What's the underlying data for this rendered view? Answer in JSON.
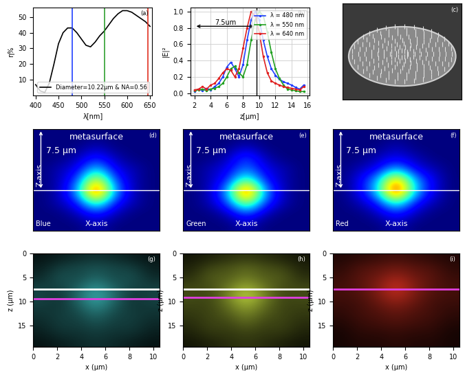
{
  "chart_data": [
    {
      "type": "line",
      "panel": "(a)",
      "xlabel": "λ[nm]",
      "ylabel": "η%",
      "x": [
        400,
        410,
        420,
        430,
        440,
        450,
        460,
        470,
        480,
        490,
        500,
        510,
        520,
        530,
        540,
        550,
        560,
        570,
        580,
        590,
        600,
        610,
        620,
        630,
        640,
        650
      ],
      "series": [
        {
          "name": "Diameter=10.22μm & NA=0.56",
          "color": "#000000",
          "values": [
            7,
            3,
            2,
            8,
            20,
            33,
            40,
            43,
            43,
            40,
            36,
            32,
            31,
            34,
            38,
            41,
            45,
            49,
            52,
            54,
            54,
            53,
            51,
            49,
            47,
            44
          ]
        }
      ],
      "vlines": [
        {
          "x": 480,
          "color": "#2040ff"
        },
        {
          "x": 550,
          "color": "#30a030"
        },
        {
          "x": 645,
          "color": "#e03020"
        }
      ],
      "xlim": [
        395,
        655
      ],
      "ylim": [
        0,
        56
      ],
      "xticks": [
        400,
        450,
        500,
        550,
        600,
        650
      ],
      "yticks": [
        10,
        20,
        30,
        40,
        50
      ],
      "legend": "lower right"
    },
    {
      "type": "line",
      "panel": "(b)",
      "xlabel": "z[μm]",
      "ylabel": "|E|²",
      "x": [
        2,
        2.5,
        3,
        3.5,
        4,
        4.5,
        5,
        5.5,
        6,
        6.5,
        7,
        7.5,
        8,
        8.5,
        9,
        9.5,
        10,
        10.5,
        11,
        11.5,
        12,
        12.5,
        13,
        13.5,
        14,
        14.5,
        15,
        15.5
      ],
      "series": [
        {
          "name": "λ = 480 nm",
          "color": "#1f3fff",
          "marker": "point",
          "values": [
            0.02,
            0.05,
            0.03,
            0.06,
            0.04,
            0.08,
            0.12,
            0.2,
            0.32,
            0.38,
            0.3,
            0.2,
            0.35,
            0.65,
            0.9,
            1.0,
            0.9,
            0.65,
            0.45,
            0.3,
            0.22,
            0.17,
            0.14,
            0.12,
            0.1,
            0.07,
            0.05,
            0.1
          ]
        },
        {
          "name": "λ = 550 nm",
          "color": "#20a020",
          "marker": "point",
          "values": [
            0.03,
            0.04,
            0.05,
            0.03,
            0.05,
            0.06,
            0.08,
            0.12,
            0.2,
            0.3,
            0.33,
            0.25,
            0.2,
            0.35,
            0.65,
            0.9,
            1.0,
            0.95,
            0.75,
            0.5,
            0.3,
            0.18,
            0.1,
            0.05,
            0.04,
            0.03,
            0.02,
            0.02
          ]
        },
        {
          "name": "λ = 640 nm",
          "color": "#e02020",
          "marker": "point",
          "values": [
            0.04,
            0.05,
            0.08,
            0.05,
            0.1,
            0.12,
            0.18,
            0.25,
            0.3,
            0.28,
            0.2,
            0.3,
            0.55,
            0.8,
            1.0,
            0.95,
            0.75,
            0.45,
            0.25,
            0.15,
            0.12,
            0.1,
            0.08,
            0.07,
            0.06,
            0.05,
            0.04,
            0.08
          ]
        }
      ],
      "annotation": {
        "text": "7.5um",
        "x": [
          2,
          9.6
        ],
        "y": 0.82
      },
      "vline": 9.7,
      "xlim": [
        1.5,
        16.2
      ],
      "ylim": [
        -0.03,
        1.05
      ],
      "xticks": [
        2,
        4,
        6,
        8,
        10,
        12,
        14,
        16
      ],
      "yticks": [
        {
          "value": 0,
          "label": "0.0"
        },
        {
          "value": 0.2,
          "label": "0.2"
        },
        {
          "value": 0.4,
          "label": "0.4"
        },
        {
          "value": 0.6,
          "label": "0.6"
        },
        {
          "value": 0.8,
          "label": "0.8"
        },
        {
          "value": 1,
          "label": "1.0"
        }
      ],
      "grid": true,
      "legend": "upper right"
    },
    {
      "type": "image",
      "panel": "(c)"
    },
    {
      "type": "heatmap",
      "panel": "(d)",
      "top_label": "metasurface",
      "xlabel": "X-axis",
      "ylabel": "Z-axis",
      "corner_label": "Blue",
      "arrow_label": "7.5 μm",
      "focus_z": 7.5,
      "xlim": [
        0,
        10.22
      ],
      "ylim": [
        12.5,
        0
      ],
      "tick_labels": false,
      "cells": [
        [
          0,
          0,
          0,
          0,
          0,
          0,
          0
        ],
        [
          0,
          0,
          0,
          0.05,
          0,
          0,
          0
        ],
        [
          0,
          0,
          0.05,
          0.15,
          0.05,
          0,
          0
        ],
        [
          0,
          0.05,
          0.1,
          0.35,
          0.1,
          0.05,
          0
        ],
        [
          0,
          0.05,
          0.2,
          0.7,
          0.2,
          0.05,
          0
        ],
        [
          0,
          0.05,
          0.3,
          1.0,
          0.3,
          0.05,
          0
        ],
        [
          0,
          0.05,
          0.15,
          0.5,
          0.15,
          0.05,
          0
        ],
        [
          0,
          0,
          0.05,
          0.15,
          0.05,
          0,
          0
        ],
        [
          0,
          0,
          0,
          0.05,
          0,
          0,
          0
        ]
      ]
    },
    {
      "type": "heatmap",
      "panel": "(e)",
      "top_label": "metasurface",
      "xlabel": "X-axis",
      "ylabel": "Z-axis",
      "corner_label": "Green",
      "arrow_label": "7.5 μm",
      "focus_z": 7.5,
      "xlim": [
        0,
        10.22
      ],
      "ylim": [
        12.5,
        0
      ],
      "tick_labels": false,
      "cells": [
        [
          0,
          0,
          0,
          0,
          0,
          0,
          0
        ],
        [
          0,
          0,
          0,
          0.05,
          0,
          0,
          0
        ],
        [
          0,
          0,
          0.05,
          0.2,
          0.05,
          0,
          0
        ],
        [
          0,
          0.05,
          0.1,
          0.25,
          0.1,
          0.05,
          0
        ],
        [
          0,
          0.05,
          0.15,
          0.5,
          0.15,
          0.05,
          0
        ],
        [
          0,
          0.05,
          0.3,
          1.0,
          0.3,
          0.05,
          0
        ],
        [
          0,
          0.05,
          0.2,
          0.6,
          0.2,
          0.05,
          0
        ],
        [
          0,
          0,
          0.05,
          0.2,
          0.05,
          0,
          0
        ],
        [
          0,
          0,
          0,
          0.05,
          0,
          0,
          0
        ]
      ]
    },
    {
      "type": "heatmap",
      "panel": "(f)",
      "top_label": "metasurface",
      "xlabel": "X-axis",
      "ylabel": "Z-axis",
      "corner_label": "Red",
      "arrow_label": "7.5 μm",
      "focus_z": 7.5,
      "xlim": [
        0,
        10.22
      ],
      "ylim": [
        12.5,
        0
      ],
      "tick_labels": false,
      "cells": [
        [
          0,
          0,
          0,
          0,
          0,
          0,
          0
        ],
        [
          0,
          0,
          0,
          0.05,
          0,
          0,
          0
        ],
        [
          0,
          0,
          0.05,
          0.1,
          0.05,
          0,
          0
        ],
        [
          0,
          0.05,
          0.1,
          0.3,
          0.1,
          0.05,
          0
        ],
        [
          0,
          0.1,
          0.3,
          0.8,
          0.3,
          0.1,
          0
        ],
        [
          0,
          0.1,
          0.35,
          1.0,
          0.35,
          0.1,
          0
        ],
        [
          0,
          0.05,
          0.15,
          0.45,
          0.15,
          0.05,
          0
        ],
        [
          0,
          0,
          0.05,
          0.15,
          0.05,
          0,
          0
        ],
        [
          0,
          0,
          0,
          0.05,
          0,
          0,
          0
        ]
      ]
    },
    {
      "type": "heatmap",
      "panel": "(g)",
      "xlabel": "x (μm)",
      "ylabel": "z (μm)",
      "color": "#3fc8c8",
      "xlim": [
        0,
        10.5
      ],
      "ylim": [
        19.5,
        0
      ],
      "xticks": [
        0,
        2,
        4,
        6,
        8,
        10
      ],
      "yticks": [
        0,
        5,
        10,
        15
      ],
      "lines": [
        {
          "z": 7.5,
          "color": "#ffffff"
        },
        {
          "z": 9.5,
          "color": "#e040e0"
        }
      ],
      "cells": [
        [
          0.1,
          0.15,
          0.2,
          0.25,
          0.2,
          0.15,
          0.1
        ],
        [
          0.15,
          0.3,
          0.35,
          0.4,
          0.35,
          0.3,
          0.15
        ],
        [
          0.2,
          0.4,
          0.35,
          0.5,
          0.35,
          0.4,
          0.2
        ],
        [
          0.3,
          0.35,
          0.45,
          0.7,
          0.45,
          0.35,
          0.3
        ],
        [
          0.35,
          0.25,
          0.55,
          0.9,
          0.55,
          0.25,
          0.35
        ],
        [
          0.3,
          0.25,
          0.45,
          0.75,
          0.45,
          0.25,
          0.3
        ],
        [
          0.25,
          0.3,
          0.35,
          0.55,
          0.35,
          0.3,
          0.25
        ],
        [
          0.2,
          0.3,
          0.3,
          0.4,
          0.3,
          0.3,
          0.2
        ],
        [
          0.15,
          0.25,
          0.25,
          0.3,
          0.25,
          0.25,
          0.15
        ],
        [
          0.1,
          0.15,
          0.2,
          0.25,
          0.2,
          0.15,
          0.1
        ]
      ]
    },
    {
      "type": "heatmap",
      "panel": "(h)",
      "xlabel": "x (μm)",
      "ylabel": "z (μm)",
      "color": "#c8e040",
      "xlim": [
        0,
        10.5
      ],
      "ylim": [
        19.5,
        0
      ],
      "xticks": [
        0,
        2,
        4,
        6,
        8,
        10
      ],
      "yticks": [
        0,
        5,
        10,
        15
      ],
      "lines": [
        {
          "z": 7.5,
          "color": "#ffffff"
        },
        {
          "z": 9.2,
          "color": "#e040e0"
        }
      ],
      "cells": [
        [
          0.1,
          0.15,
          0.2,
          0.25,
          0.2,
          0.15,
          0.1
        ],
        [
          0.15,
          0.3,
          0.35,
          0.45,
          0.35,
          0.3,
          0.15
        ],
        [
          0.2,
          0.4,
          0.4,
          0.55,
          0.4,
          0.4,
          0.2
        ],
        [
          0.3,
          0.35,
          0.5,
          0.75,
          0.5,
          0.35,
          0.3
        ],
        [
          0.35,
          0.3,
          0.6,
          1.0,
          0.6,
          0.3,
          0.35
        ],
        [
          0.3,
          0.3,
          0.5,
          0.8,
          0.5,
          0.3,
          0.3
        ],
        [
          0.25,
          0.3,
          0.4,
          0.6,
          0.4,
          0.3,
          0.25
        ],
        [
          0.2,
          0.3,
          0.3,
          0.45,
          0.3,
          0.3,
          0.2
        ],
        [
          0.15,
          0.25,
          0.25,
          0.3,
          0.25,
          0.25,
          0.15
        ],
        [
          0.1,
          0.15,
          0.2,
          0.25,
          0.2,
          0.15,
          0.1
        ]
      ]
    },
    {
      "type": "heatmap",
      "panel": "(i)",
      "xlabel": "x (μm)",
      "ylabel": "z (μm)",
      "color": "#d83020",
      "xlim": [
        0,
        10.5
      ],
      "ylim": [
        19.5,
        0
      ],
      "xticks": [
        0,
        2,
        4,
        6,
        8,
        10
      ],
      "yticks": [
        0,
        5,
        10,
        15
      ],
      "lines": [
        {
          "z": 7.5,
          "color": "#e040e0"
        }
      ],
      "cells": [
        [
          0.15,
          0.2,
          0.25,
          0.3,
          0.25,
          0.2,
          0.15
        ],
        [
          0.2,
          0.35,
          0.4,
          0.5,
          0.4,
          0.35,
          0.2
        ],
        [
          0.25,
          0.4,
          0.5,
          0.7,
          0.5,
          0.4,
          0.25
        ],
        [
          0.3,
          0.4,
          0.6,
          0.95,
          0.6,
          0.4,
          0.3
        ],
        [
          0.3,
          0.35,
          0.55,
          0.85,
          0.55,
          0.35,
          0.3
        ],
        [
          0.25,
          0.3,
          0.45,
          0.6,
          0.45,
          0.3,
          0.25
        ],
        [
          0.2,
          0.3,
          0.35,
          0.45,
          0.35,
          0.3,
          0.2
        ],
        [
          0.15,
          0.25,
          0.3,
          0.35,
          0.3,
          0.25,
          0.15
        ],
        [
          0.1,
          0.2,
          0.2,
          0.25,
          0.2,
          0.2,
          0.1
        ],
        [
          0.1,
          0.15,
          0.15,
          0.2,
          0.15,
          0.15,
          0.1
        ]
      ]
    }
  ]
}
